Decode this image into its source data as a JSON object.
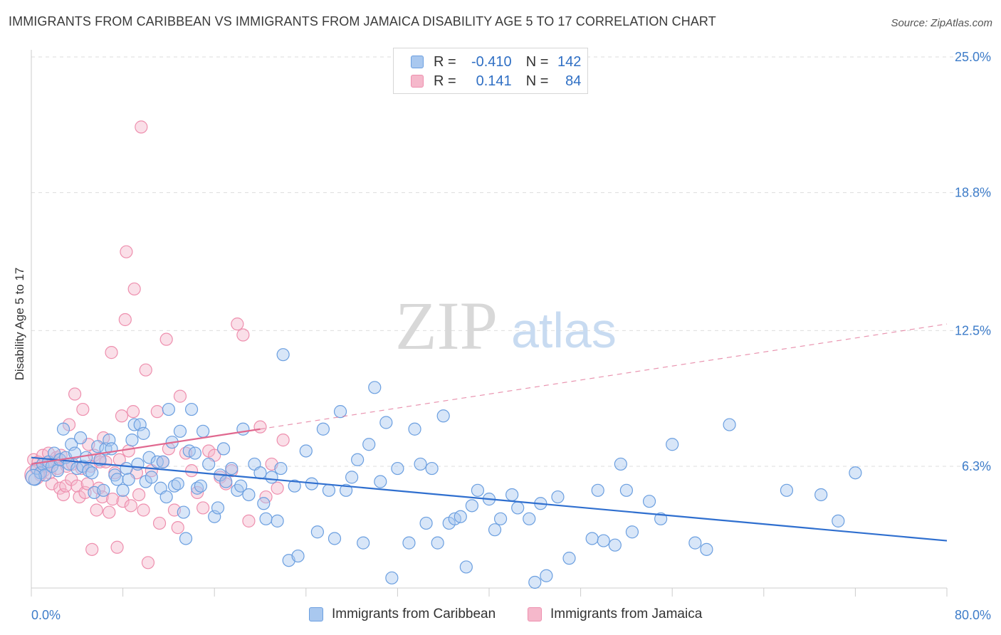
{
  "header": {
    "title": "IMMIGRANTS FROM CARIBBEAN VS IMMIGRANTS FROM JAMAICA DISABILITY AGE 5 TO 17 CORRELATION CHART",
    "source": "Source: ZipAtlas.com"
  },
  "watermark": {
    "zip": "ZIP",
    "atlas": "atlas"
  },
  "legend": {
    "rows": [
      {
        "r_label": "R =",
        "r_value": "-0.410",
        "n_label": "N =",
        "n_value": "142"
      },
      {
        "r_label": "R =",
        "r_value": "0.141",
        "n_label": "N =",
        "n_value": "84"
      }
    ]
  },
  "colors": {
    "blue_fill": "#a9c8ef",
    "blue_stroke": "#6b9fe0",
    "blue_line": "#2f6fcf",
    "pink_fill": "#f5b8cb",
    "pink_stroke": "#ee8fae",
    "pink_line": "#e0688f",
    "grid": "#dddddd",
    "tick_text": "#3d7cc9"
  },
  "chart_data": {
    "type": "scatter",
    "title": "IMMIGRANTS FROM CARIBBEAN VS IMMIGRANTS FROM JAMAICA DISABILITY AGE 5 TO 17 CORRELATION CHART",
    "xlabel": "",
    "ylabel": "Disability Age 5 to 17",
    "xlim": [
      0,
      80
    ],
    "ylim": [
      0,
      26
    ],
    "x_tick_labels": [
      "0.0%",
      "80.0%"
    ],
    "y_ticks": [
      6.3,
      12.5,
      18.8,
      25.0
    ],
    "y_tick_labels": [
      "6.3%",
      "12.5%",
      "18.8%",
      "25.0%"
    ],
    "grid": true,
    "legend_position": "top-center",
    "series": [
      {
        "name": "Immigrants from Caribbean",
        "color": "#6b9fe0",
        "R": -0.41,
        "N": 142,
        "trend": {
          "x0": 0,
          "y0": 6.7,
          "x1": 80,
          "y1": 2.9
        },
        "points": [
          [
            0.3,
            5.7
          ],
          [
            0.5,
            6.2
          ],
          [
            0.8,
            6.0
          ],
          [
            1.0,
            6.4
          ],
          [
            1.2,
            5.9
          ],
          [
            1.5,
            6.5
          ],
          [
            1.8,
            6.3
          ],
          [
            2.0,
            6.9
          ],
          [
            2.3,
            6.1
          ],
          [
            2.5,
            6.6
          ],
          [
            2.8,
            8.0
          ],
          [
            3.0,
            6.7
          ],
          [
            3.3,
            6.4
          ],
          [
            3.5,
            7.3
          ],
          [
            3.8,
            6.9
          ],
          [
            4.0,
            6.2
          ],
          [
            4.3,
            7.6
          ],
          [
            4.5,
            6.3
          ],
          [
            4.8,
            6.7
          ],
          [
            5.0,
            6.1
          ],
          [
            5.3,
            6.0
          ],
          [
            5.5,
            5.1
          ],
          [
            5.8,
            7.2
          ],
          [
            6.0,
            6.6
          ],
          [
            6.3,
            5.2
          ],
          [
            6.5,
            7.1
          ],
          [
            6.8,
            7.5
          ],
          [
            7.0,
            7.1
          ],
          [
            7.3,
            5.9
          ],
          [
            7.5,
            5.7
          ],
          [
            8.0,
            5.2
          ],
          [
            8.3,
            6.2
          ],
          [
            8.5,
            5.7
          ],
          [
            8.8,
            7.5
          ],
          [
            9.0,
            8.2
          ],
          [
            9.3,
            6.4
          ],
          [
            9.5,
            8.2
          ],
          [
            9.8,
            7.8
          ],
          [
            10.0,
            5.6
          ],
          [
            10.3,
            6.7
          ],
          [
            10.5,
            5.8
          ],
          [
            11.0,
            6.5
          ],
          [
            11.3,
            5.3
          ],
          [
            11.5,
            6.5
          ],
          [
            11.8,
            4.9
          ],
          [
            12.0,
            8.9
          ],
          [
            12.3,
            7.4
          ],
          [
            12.5,
            5.4
          ],
          [
            12.8,
            5.5
          ],
          [
            13.0,
            7.9
          ],
          [
            13.3,
            4.2
          ],
          [
            13.5,
            3.0
          ],
          [
            13.8,
            7.0
          ],
          [
            14.0,
            8.9
          ],
          [
            14.3,
            6.9
          ],
          [
            14.5,
            5.3
          ],
          [
            14.8,
            5.4
          ],
          [
            15.0,
            7.9
          ],
          [
            15.5,
            6.4
          ],
          [
            16.0,
            4.0
          ],
          [
            16.3,
            4.4
          ],
          [
            16.5,
            5.9
          ],
          [
            16.8,
            7.1
          ],
          [
            17.0,
            5.6
          ],
          [
            17.5,
            6.2
          ],
          [
            18.0,
            5.2
          ],
          [
            18.3,
            5.4
          ],
          [
            18.5,
            8.0
          ],
          [
            19.0,
            5.0
          ],
          [
            19.5,
            6.4
          ],
          [
            20.0,
            6.0
          ],
          [
            20.3,
            4.6
          ],
          [
            20.5,
            3.9
          ],
          [
            21.0,
            5.8
          ],
          [
            21.5,
            3.8
          ],
          [
            21.8,
            6.2
          ],
          [
            22.0,
            11.4
          ],
          [
            22.5,
            2.0
          ],
          [
            23.0,
            5.4
          ],
          [
            23.3,
            2.2
          ],
          [
            24.0,
            7.0
          ],
          [
            24.5,
            5.5
          ],
          [
            25.0,
            3.3
          ],
          [
            25.5,
            8.0
          ],
          [
            26.0,
            5.2
          ],
          [
            26.5,
            3.0
          ],
          [
            27.0,
            8.8
          ],
          [
            27.5,
            5.2
          ],
          [
            28.0,
            5.8
          ],
          [
            28.5,
            6.6
          ],
          [
            29.0,
            2.8
          ],
          [
            29.5,
            7.3
          ],
          [
            30.0,
            9.9
          ],
          [
            30.5,
            5.6
          ],
          [
            31.0,
            8.3
          ],
          [
            31.5,
            1.2
          ],
          [
            32.0,
            6.2
          ],
          [
            33.0,
            2.8
          ],
          [
            33.5,
            8.0
          ],
          [
            34.0,
            6.4
          ],
          [
            34.5,
            3.7
          ],
          [
            35.0,
            6.2
          ],
          [
            35.5,
            2.8
          ],
          [
            36.0,
            8.6
          ],
          [
            36.5,
            3.7
          ],
          [
            37.0,
            3.9
          ],
          [
            37.5,
            4.0
          ],
          [
            38.0,
            1.7
          ],
          [
            38.5,
            4.5
          ],
          [
            39.0,
            5.2
          ],
          [
            40.0,
            4.8
          ],
          [
            40.5,
            3.4
          ],
          [
            41.0,
            3.9
          ],
          [
            42.0,
            5.0
          ],
          [
            42.5,
            4.4
          ],
          [
            43.5,
            3.9
          ],
          [
            44.0,
            1.0
          ],
          [
            44.5,
            4.6
          ],
          [
            45.0,
            1.3
          ],
          [
            46.0,
            4.9
          ],
          [
            47.0,
            2.1
          ],
          [
            49.0,
            3.0
          ],
          [
            49.5,
            5.2
          ],
          [
            50.0,
            2.9
          ],
          [
            51.0,
            2.7
          ],
          [
            51.5,
            6.4
          ],
          [
            52.0,
            5.2
          ],
          [
            52.5,
            3.3
          ],
          [
            54.0,
            4.7
          ],
          [
            55.0,
            3.9
          ],
          [
            56.0,
            7.3
          ],
          [
            58.0,
            2.8
          ],
          [
            59.0,
            2.5
          ],
          [
            61.0,
            8.2
          ],
          [
            66.0,
            5.2
          ],
          [
            69.0,
            5.0
          ],
          [
            70.5,
            3.8
          ],
          [
            72.0,
            6.0
          ]
        ]
      },
      {
        "name": "Immigrants from Jamaica",
        "color": "#ee8fae",
        "R": 0.141,
        "N": 84,
        "trend": {
          "x0": 0,
          "y0": 6.4,
          "x1": 20,
          "y1": 8.0,
          "dashed_to": {
            "x": 80,
            "y": 12.8
          }
        },
        "points": [
          [
            0.2,
            6.6
          ],
          [
            0.4,
            6.2
          ],
          [
            0.6,
            6.5
          ],
          [
            0.8,
            5.9
          ],
          [
            1.0,
            6.8
          ],
          [
            1.1,
            6.1
          ],
          [
            1.3,
            6.3
          ],
          [
            1.5,
            6.9
          ],
          [
            1.6,
            6.0
          ],
          [
            1.8,
            5.5
          ],
          [
            2.0,
            6.5
          ],
          [
            2.2,
            6.7
          ],
          [
            2.3,
            6.2
          ],
          [
            2.5,
            5.3
          ],
          [
            2.6,
            6.8
          ],
          [
            2.8,
            5.0
          ],
          [
            3.0,
            5.4
          ],
          [
            3.1,
            6.3
          ],
          [
            3.3,
            8.2
          ],
          [
            3.5,
            5.7
          ],
          [
            3.6,
            6.4
          ],
          [
            3.8,
            9.6
          ],
          [
            4.0,
            5.4
          ],
          [
            4.2,
            4.9
          ],
          [
            4.4,
            6.2
          ],
          [
            4.5,
            8.9
          ],
          [
            4.7,
            5.1
          ],
          [
            4.9,
            5.5
          ],
          [
            5.0,
            7.3
          ],
          [
            5.2,
            6.3
          ],
          [
            5.3,
            2.5
          ],
          [
            5.5,
            6.8
          ],
          [
            5.7,
            4.3
          ],
          [
            5.9,
            5.3
          ],
          [
            6.0,
            6.5
          ],
          [
            6.2,
            4.9
          ],
          [
            6.3,
            7.6
          ],
          [
            6.5,
            6.5
          ],
          [
            6.8,
            4.2
          ],
          [
            7.0,
            11.5
          ],
          [
            7.1,
            4.8
          ],
          [
            7.3,
            6.0
          ],
          [
            7.5,
            2.6
          ],
          [
            7.7,
            6.6
          ],
          [
            7.9,
            8.6
          ],
          [
            8.0,
            4.7
          ],
          [
            8.2,
            13.0
          ],
          [
            8.3,
            16.1
          ],
          [
            8.5,
            7.0
          ],
          [
            8.7,
            4.5
          ],
          [
            8.9,
            8.8
          ],
          [
            9.0,
            14.4
          ],
          [
            9.2,
            6.0
          ],
          [
            9.4,
            5.0
          ],
          [
            9.6,
            21.8
          ],
          [
            9.8,
            4.3
          ],
          [
            10.0,
            10.7
          ],
          [
            10.2,
            1.9
          ],
          [
            10.5,
            6.1
          ],
          [
            11.0,
            8.8
          ],
          [
            11.2,
            3.7
          ],
          [
            11.5,
            6.5
          ],
          [
            12.0,
            7.1
          ],
          [
            12.5,
            4.3
          ],
          [
            12.8,
            3.5
          ],
          [
            13.0,
            9.5
          ],
          [
            13.5,
            6.9
          ],
          [
            14.0,
            6.1
          ],
          [
            14.5,
            5.1
          ],
          [
            15.0,
            4.4
          ],
          [
            15.5,
            7.0
          ],
          [
            16.0,
            6.8
          ],
          [
            16.5,
            5.8
          ],
          [
            17.5,
            6.1
          ],
          [
            18.0,
            12.8
          ],
          [
            18.5,
            12.3
          ],
          [
            19.0,
            3.8
          ],
          [
            20.0,
            8.1
          ],
          [
            20.5,
            4.9
          ],
          [
            21.0,
            6.4
          ],
          [
            21.5,
            5.3
          ],
          [
            22.0,
            7.5
          ],
          [
            17.0,
            5.5
          ],
          [
            11.8,
            12.1
          ]
        ]
      }
    ]
  }
}
